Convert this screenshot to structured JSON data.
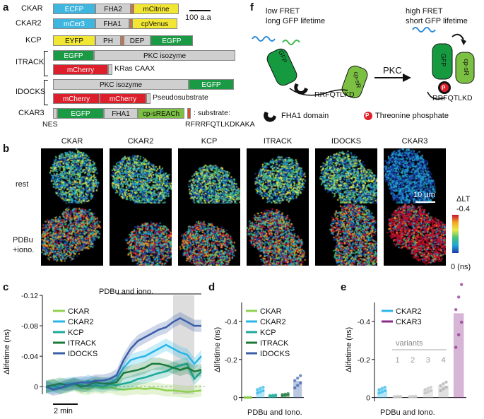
{
  "panels": {
    "a": "a",
    "b": "b",
    "c": "c",
    "d": "d",
    "e": "e",
    "f": "f"
  },
  "panel_a": {
    "scale_label": "100 a.a",
    "constructs": [
      {
        "name": "CKAR",
        "segments": [
          "ECFP",
          "FHA2",
          "",
          "mCitrine"
        ]
      },
      {
        "name": "CKAR2",
        "segments": [
          "mCer3",
          "FHA1",
          "",
          "cpVenus"
        ]
      },
      {
        "name": "KCP",
        "segments": [
          "EYFP",
          "PH",
          "",
          "DEP",
          "EGFP"
        ]
      },
      {
        "name": "ITRACK",
        "segments": [
          "EGFP",
          "PKC isozyme",
          "mCherry",
          "KRas CAAX"
        ]
      },
      {
        "name": "IDOCKS",
        "segments": [
          "PKC isozyme",
          "EGFP",
          "mCherry",
          "mCherry",
          "Pseudosubstrate"
        ]
      },
      {
        "name": "CKAR3",
        "segments": [
          "EGFP",
          "FHA1",
          "cp-sREACh"
        ],
        "substrate_label": ": substrate:",
        "nes": "NES",
        "substrate_seq": "RFRRFQTLKDKAKA"
      }
    ]
  },
  "panel_b": {
    "columns": [
      "CKAR",
      "CKAR2",
      "KCP",
      "ITRACK",
      "IDOCKS",
      "CKAR3"
    ],
    "rows": [
      "rest",
      "PDBu\n+iono."
    ],
    "scalebar": "10 µm",
    "colorbar_title": "ΔLT",
    "colorbar_top": "-0.4",
    "colorbar_bottom": "0 (ns)"
  },
  "panel_f": {
    "left_title_1": "low FRET",
    "left_title_2": "long GFP lifetime",
    "right_title_1": "high FRET",
    "right_title_2": "short GFP lifetime",
    "arrow_label": "PKC",
    "gfp": "GFP",
    "cpsr": "cp-sR",
    "seq_left": "RRFQTLKD",
    "seq_right": "RRFQTLKD",
    "phospho": "P",
    "legend_fha1": "FHA1 domain",
    "legend_phospho": "Threonine phosphate"
  },
  "chart_data": [
    {
      "type": "line",
      "panel": "c",
      "ylabel": "Δlifetime (ns)",
      "xlabel": "",
      "annotation": "PDBu and iono.",
      "timebar": "2 min",
      "yticks": [
        "-0.12",
        "-0.08",
        "-0.04",
        "0"
      ],
      "ylim": [
        -0.12,
        0.01
      ],
      "series": [
        {
          "name": "CKAR",
          "color": "#8fd14f",
          "values": [
            0.002,
            -0.002,
            0.002,
            0,
            -0.002,
            0.002,
            0.003,
            0,
            0.002,
            0,
            0.003,
            0.004,
            0.003,
            0.002,
            0.003,
            0.002,
            0.003,
            0.005,
            0.005,
            0.006,
            0.007,
            0.006,
            0.005
          ]
        },
        {
          "name": "CKAR2",
          "color": "#29b6e8",
          "values": [
            0,
            0.002,
            -0.002,
            -0.004,
            -0.005,
            -0.003,
            -0.008,
            -0.004,
            -0.004,
            -0.005,
            -0.01,
            -0.025,
            -0.035,
            -0.038,
            -0.04,
            -0.045,
            -0.05,
            -0.055,
            -0.05,
            -0.045,
            -0.042,
            -0.03,
            -0.04
          ]
        },
        {
          "name": "KCP",
          "color": "#1ba99a",
          "values": [
            0,
            -0.002,
            0.002,
            0,
            -0.003,
            -0.002,
            0,
            -0.002,
            0,
            -0.003,
            -0.002,
            -0.004,
            -0.006,
            -0.01,
            -0.012,
            -0.015,
            -0.018,
            -0.02,
            -0.025,
            -0.028,
            -0.03,
            -0.01,
            -0.02
          ]
        },
        {
          "name": "ITRACK",
          "color": "#1b7a3a",
          "values": [
            0,
            -0.002,
            -0.004,
            -0.002,
            -0.004,
            0,
            -0.002,
            -0.006,
            -0.004,
            -0.004,
            -0.006,
            -0.018,
            -0.02,
            -0.022,
            -0.025,
            -0.03,
            -0.03,
            -0.028,
            -0.025,
            -0.022,
            -0.025,
            -0.02,
            -0.022
          ]
        },
        {
          "name": "IDOCKS",
          "color": "#3b5ea8",
          "values": [
            0,
            0.004,
            0.002,
            -0.002,
            -0.004,
            -0.006,
            -0.005,
            -0.008,
            -0.008,
            -0.01,
            -0.015,
            -0.035,
            -0.05,
            -0.06,
            -0.065,
            -0.07,
            -0.075,
            -0.078,
            -0.085,
            -0.09,
            -0.085,
            -0.08,
            -0.08
          ]
        }
      ]
    },
    {
      "type": "bar",
      "panel": "d",
      "ylabel": "Δlifetime (ns)",
      "xlabel": "PDBu and Iono.",
      "yticks": [
        "-0.4",
        "-0.2",
        "0"
      ],
      "ylim": [
        -0.5,
        0.02
      ],
      "categories": [
        "CKAR",
        "CKAR2",
        "KCP",
        "ITRACK",
        "IDOCKS"
      ],
      "values": [
        0,
        -0.04,
        -0.01,
        -0.015,
        -0.085
      ],
      "colors": [
        "#8fd14f",
        "#29b6e8",
        "#1ba99a",
        "#1b7a3a",
        "#3b5ea8"
      ]
    },
    {
      "type": "bar",
      "panel": "e",
      "ylabel": "Δlifetime (ns)",
      "xlabel": "PDBu and Iono.",
      "yticks": [
        "-0.4",
        "-0.2",
        "0"
      ],
      "ylim": [
        -0.5,
        0.02
      ],
      "categories": [
        "CKAR2",
        "1",
        "2",
        "3",
        "4",
        "CKAR3"
      ],
      "values": [
        -0.04,
        -0.005,
        -0.005,
        -0.04,
        -0.06,
        -0.44
      ],
      "colors": [
        "#29b6e8",
        "#cccccc",
        "#cccccc",
        "#bdbdbd",
        "#aaaaaa",
        "#8a2b8a"
      ],
      "legend": [
        "CKAR2",
        "CKAR3"
      ],
      "variants_label": "variants"
    }
  ]
}
